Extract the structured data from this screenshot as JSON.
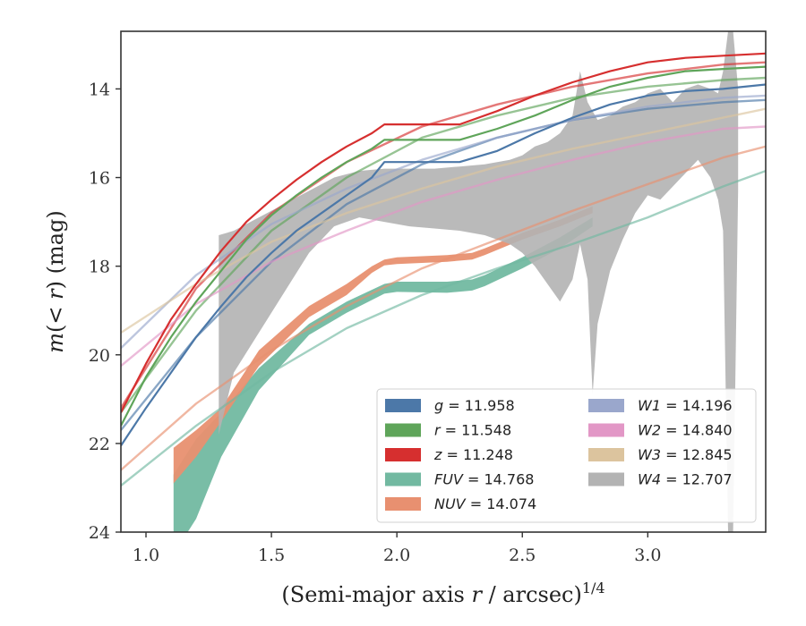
{
  "chart_data": {
    "type": "line",
    "xlabel": "(Semi-major axis r / arcsec)^1/4",
    "ylabel": "m(< r) (mag)",
    "xlim": [
      0.9,
      3.47
    ],
    "ylim": [
      24,
      12.7
    ],
    "y_inverted": true,
    "x_ticks": [
      1.0,
      1.5,
      2.0,
      2.5,
      3.0
    ],
    "y_ticks": [
      14,
      16,
      18,
      20,
      22,
      24
    ],
    "grid": false,
    "legend_position": "bottom-right",
    "series": [
      {
        "name": "g",
        "label_value": "11.958",
        "color": "#4c78a8",
        "measured": {
          "x": [
            0.9,
            1.0,
            1.1,
            1.2,
            1.3,
            1.4,
            1.5,
            1.6,
            1.7,
            1.8,
            1.9,
            1.95,
            2.0,
            2.25,
            2.4,
            2.55,
            2.7,
            2.85,
            3.0,
            3.15,
            3.3,
            3.47
          ],
          "y": [
            22.05,
            21.2,
            20.4,
            19.6,
            18.9,
            18.25,
            17.7,
            17.2,
            16.8,
            16.4,
            16.0,
            15.65,
            15.65,
            15.65,
            15.4,
            15.0,
            14.65,
            14.35,
            14.15,
            14.05,
            14.0,
            13.9
          ]
        },
        "model": {
          "x": [
            0.9,
            1.2,
            1.5,
            1.8,
            2.1,
            2.4,
            2.7,
            3.0,
            3.3,
            3.47
          ],
          "y": [
            21.7,
            19.6,
            17.9,
            16.6,
            15.7,
            15.1,
            14.7,
            14.45,
            14.3,
            14.25
          ]
        }
      },
      {
        "name": "r",
        "label_value": "11.548",
        "color": "#5fa55a",
        "measured": {
          "x": [
            0.9,
            1.0,
            1.1,
            1.2,
            1.3,
            1.4,
            1.5,
            1.6,
            1.7,
            1.8,
            1.9,
            1.95,
            2.0,
            2.25,
            2.4,
            2.55,
            2.7,
            2.85,
            3.0,
            3.15,
            3.3,
            3.47
          ],
          "y": [
            21.6,
            20.5,
            19.6,
            18.8,
            18.1,
            17.4,
            16.85,
            16.4,
            16.0,
            15.65,
            15.35,
            15.15,
            15.15,
            15.15,
            14.9,
            14.6,
            14.25,
            13.95,
            13.75,
            13.6,
            13.55,
            13.5
          ]
        },
        "model": {
          "x": [
            0.9,
            1.2,
            1.5,
            1.8,
            2.1,
            2.4,
            2.7,
            3.0,
            3.3,
            3.47
          ],
          "y": [
            21.3,
            19.0,
            17.2,
            16.0,
            15.1,
            14.6,
            14.2,
            13.95,
            13.8,
            13.75
          ]
        }
      },
      {
        "name": "z",
        "label_value": "11.248",
        "color": "#d62f2f",
        "measured": {
          "x": [
            0.9,
            1.0,
            1.1,
            1.2,
            1.3,
            1.4,
            1.5,
            1.6,
            1.7,
            1.8,
            1.9,
            1.95,
            2.0,
            2.25,
            2.4,
            2.55,
            2.7,
            2.85,
            3.0,
            3.15,
            3.3,
            3.47
          ],
          "y": [
            21.3,
            20.2,
            19.2,
            18.4,
            17.65,
            17.0,
            16.5,
            16.05,
            15.65,
            15.3,
            15.0,
            14.8,
            14.8,
            14.8,
            14.5,
            14.15,
            13.85,
            13.6,
            13.4,
            13.3,
            13.25,
            13.2
          ]
        },
        "model": {
          "x": [
            0.9,
            1.2,
            1.5,
            1.8,
            2.1,
            2.4,
            2.7,
            3.0,
            3.3,
            3.47
          ],
          "y": [
            21.2,
            18.5,
            16.8,
            15.65,
            14.85,
            14.35,
            13.95,
            13.65,
            13.45,
            13.4
          ]
        }
      },
      {
        "name": "FUV",
        "label_value": "14.768",
        "color": "#72b9a1",
        "measured": {
          "x": [
            1.11,
            1.2,
            1.3,
            1.45,
            1.65,
            1.8,
            1.95,
            2.0,
            2.2,
            2.3,
            2.35,
            2.5,
            2.65,
            2.78
          ],
          "y_upper": [
            22.7,
            21.9,
            21.3,
            20.3,
            19.3,
            18.8,
            18.4,
            18.35,
            18.35,
            18.3,
            18.2,
            17.8,
            17.35,
            16.9
          ],
          "y_lower": [
            24.5,
            23.7,
            22.3,
            20.8,
            19.55,
            19.05,
            18.62,
            18.58,
            18.6,
            18.55,
            18.45,
            18.05,
            17.6,
            17.1
          ]
        },
        "model": {
          "x": [
            0.9,
            1.2,
            1.5,
            1.8,
            2.1,
            2.4,
            2.7,
            3.0,
            3.3,
            3.47
          ],
          "y": [
            22.95,
            21.6,
            20.4,
            19.4,
            18.65,
            18.05,
            17.5,
            16.9,
            16.2,
            15.85
          ]
        }
      },
      {
        "name": "NUV",
        "label_value": "14.074",
        "color": "#e89070",
        "measured": {
          "x": [
            1.11,
            1.2,
            1.3,
            1.45,
            1.65,
            1.8,
            1.9,
            1.95,
            2.0,
            2.2,
            2.3,
            2.35,
            2.5,
            2.65,
            2.78
          ],
          "y_upper": [
            22.1,
            21.7,
            21.2,
            19.9,
            18.9,
            18.4,
            18.0,
            17.85,
            17.8,
            17.75,
            17.7,
            17.6,
            17.25,
            16.95,
            16.65
          ],
          "y_lower": [
            22.9,
            22.3,
            21.5,
            20.25,
            19.15,
            18.65,
            18.15,
            17.98,
            17.95,
            17.9,
            17.85,
            17.75,
            17.4,
            17.1,
            16.8
          ]
        },
        "model": {
          "x": [
            0.9,
            1.2,
            1.5,
            1.8,
            2.1,
            2.4,
            2.7,
            3.0,
            3.3,
            3.47
          ],
          "y": [
            22.6,
            21.1,
            19.9,
            18.9,
            18.05,
            17.4,
            16.75,
            16.15,
            15.55,
            15.3
          ]
        }
      },
      {
        "name": "W1",
        "label_value": "14.196",
        "color": "#9aa7cc",
        "model": {
          "x": [
            0.9,
            1.2,
            1.5,
            1.8,
            2.1,
            2.4,
            2.7,
            3.0,
            3.3,
            3.47
          ],
          "y": [
            19.85,
            18.2,
            17.05,
            16.25,
            15.6,
            15.1,
            14.7,
            14.4,
            14.2,
            14.15
          ]
        }
      },
      {
        "name": "W2",
        "label_value": "14.840",
        "color": "#e297c6",
        "model": {
          "x": [
            0.9,
            1.2,
            1.5,
            1.8,
            2.1,
            2.4,
            2.7,
            3.0,
            3.3,
            3.47
          ],
          "y": [
            20.25,
            18.85,
            17.9,
            17.2,
            16.55,
            16.05,
            15.6,
            15.2,
            14.9,
            14.85
          ]
        }
      },
      {
        "name": "W3",
        "label_value": "12.845",
        "color": "#dcc49e",
        "model": {
          "x": [
            0.9,
            1.2,
            1.5,
            1.8,
            2.1,
            2.4,
            2.7,
            3.0,
            3.3,
            3.47
          ],
          "y": [
            19.5,
            18.4,
            17.45,
            16.8,
            16.25,
            15.75,
            15.35,
            15.0,
            14.65,
            14.45
          ]
        }
      },
      {
        "name": "W4",
        "label_value": "12.707",
        "color": "#b3b3b3",
        "measured": {
          "x": [
            1.29,
            1.35,
            1.45,
            1.55,
            1.65,
            1.75,
            1.85,
            1.95,
            2.05,
            2.15,
            2.25,
            2.35,
            2.45,
            2.5,
            2.55,
            2.6,
            2.65,
            2.7,
            2.73,
            2.76,
            2.78,
            2.8,
            2.85,
            2.9,
            2.95,
            3.0,
            3.05,
            3.1,
            3.15,
            3.2,
            3.25,
            3.28,
            3.3,
            3.32,
            3.34,
            3.36
          ],
          "y_upper": [
            17.3,
            17.2,
            16.9,
            16.6,
            16.3,
            16.0,
            15.85,
            15.8,
            15.8,
            15.8,
            15.75,
            15.7,
            15.6,
            15.5,
            15.3,
            15.2,
            15.0,
            14.6,
            13.6,
            14.3,
            14.5,
            14.7,
            14.6,
            14.4,
            14.3,
            14.1,
            14.0,
            14.3,
            14.0,
            13.9,
            14.0,
            14.1,
            13.6,
            12.7,
            12.7,
            14.0
          ],
          "y_lower": [
            21.8,
            20.4,
            19.5,
            18.6,
            17.7,
            17.1,
            16.9,
            17.0,
            17.1,
            17.15,
            17.2,
            17.3,
            17.5,
            17.7,
            18.0,
            18.4,
            18.8,
            18.3,
            17.5,
            18.3,
            20.9,
            19.3,
            18.1,
            17.4,
            16.8,
            16.4,
            16.5,
            16.2,
            15.9,
            15.6,
            16.0,
            16.5,
            17.2,
            24.0,
            24.0,
            16.3
          ]
        }
      }
    ]
  }
}
